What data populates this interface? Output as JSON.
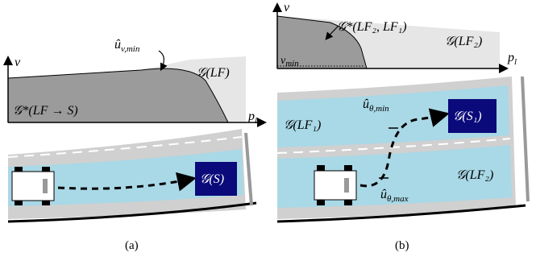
{
  "panels": [
    {
      "caption": "(a)",
      "v_axis": "v",
      "p_axis": {
        "base": "p",
        "sub": "l"
      },
      "bound_label": {
        "base": "û",
        "sub": "v,min"
      },
      "region_light": "𝒢(LF)",
      "region_dark": "𝒢*(LF → S)",
      "goal": "𝒢(S)"
    },
    {
      "caption": "(b)",
      "v_axis": "v",
      "p_axis": {
        "base": "p",
        "sub": "l"
      },
      "region_dark": "𝒢*(LF₂, LF₁)",
      "region_light": "𝒢(LF₂)",
      "vmin": {
        "base": "v",
        "sub": "min"
      },
      "lane_upper": "𝒢(LF₁)",
      "lane_lower": "𝒢(LF₂)",
      "goal": "𝒢(S₁)",
      "theta_min": {
        "base": "û",
        "sub": "θ,min"
      },
      "theta_max": {
        "base": "û",
        "sub": "θ,max"
      }
    }
  ]
}
